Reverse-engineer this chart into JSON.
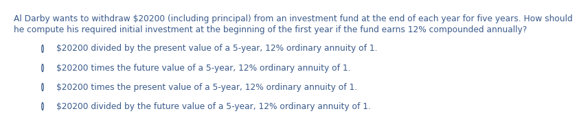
{
  "background_color": "#ffffff",
  "text_color": "#3a5a8a",
  "question_line1": "Al Darby wants to withdraw $20200 (including principal) from an investment fund at the end of each year for five years. How should",
  "question_line2": "he compute his required initial investment at the beginning of the first year if the fund earns 12% compounded annually?",
  "options": [
    "$20200 divided by the present value of a 5-year, 12% ordinary annuity of 1.",
    "$20200 times the future value of a 5-year, 12% ordinary annuity of 1.",
    "$20200 times the present value of a 5-year, 12% ordinary annuity of 1.",
    "$20200 divided by the future value of a 5-year, 12% ordinary annuity of 1."
  ],
  "question_fontsize": 8.8,
  "option_fontsize": 8.8,
  "fig_width": 7.48,
  "fig_height": 1.71
}
